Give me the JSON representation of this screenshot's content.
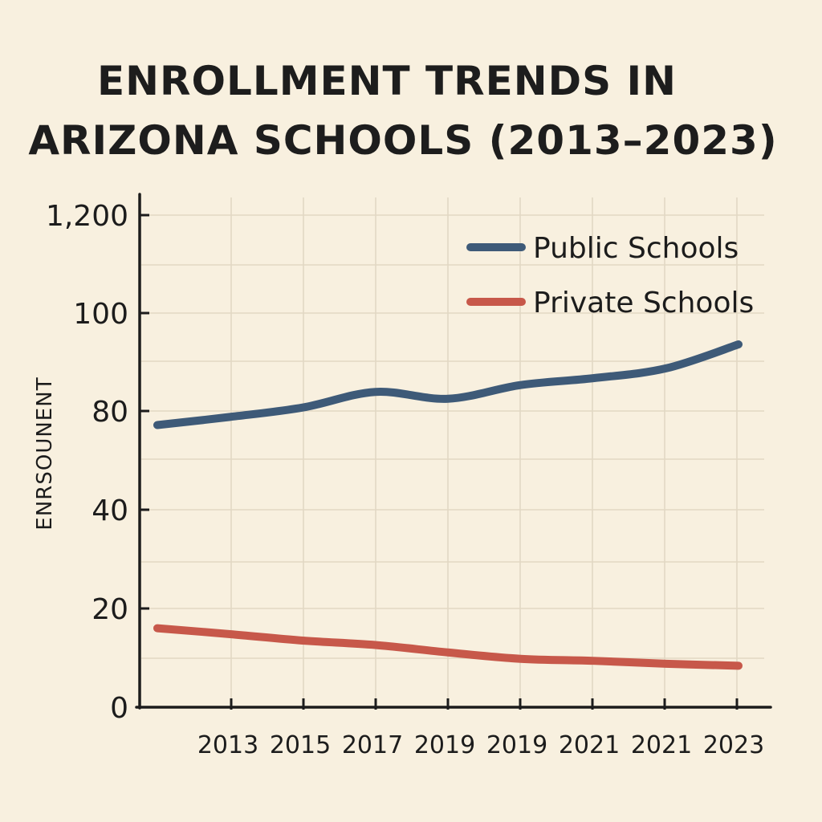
{
  "chart_data": {
    "type": "line",
    "title_line1": "ENROLLMENT TRENDS IN",
    "title_line2": "ARIZONA SCHOOLS (2013–2023)",
    "xlabel": "",
    "ylabel": "ENRSOUNENT",
    "y_tick_labels": [
      "0",
      "20",
      "40",
      "80",
      "100",
      "1,200"
    ],
    "x_tick_labels": [
      "2013",
      "2015",
      "2017",
      "2019",
      "2019",
      "2021",
      "2021",
      "2023"
    ],
    "x_points": 9,
    "grid": true,
    "legend_position": "top-right",
    "series": [
      {
        "name": "Public Schools",
        "color": "#3e5a78",
        "values": [
          74.3,
          77.6,
          80.7,
          83.9,
          82.5,
          85.3,
          86.7,
          88.7,
          93.6
        ]
      },
      {
        "name": "Private Schools",
        "color": "#c7584a",
        "values": [
          16.0,
          14.8,
          13.5,
          12.6,
          11.1,
          9.8,
          9.4,
          8.8,
          8.4
        ]
      }
    ]
  }
}
